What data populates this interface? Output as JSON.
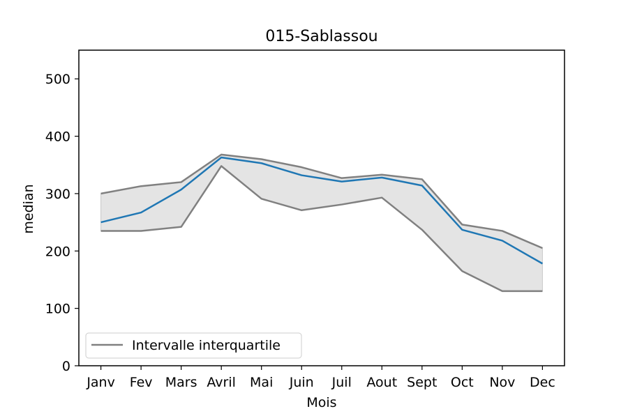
{
  "chart_data": {
    "type": "line",
    "title": "015-Sablassou",
    "xlabel": "Mois",
    "ylabel": "median",
    "categories": [
      "Janv",
      "Fev",
      "Mars",
      "Avril",
      "Mai",
      "Juin",
      "Juil",
      "Aout",
      "Sept",
      "Oct",
      "Nov",
      "Dec"
    ],
    "ylim": [
      0,
      550
    ],
    "yticks": [
      0,
      100,
      200,
      300,
      400,
      500
    ],
    "grid": false,
    "legend_position": "lower-left",
    "series": [
      {
        "key": "median",
        "values": [
          250,
          267,
          307,
          363,
          353,
          332,
          321,
          328,
          314,
          237,
          218,
          178
        ],
        "color": "#1f77b4"
      },
      {
        "key": "q3",
        "name": "Intervalle interquartile",
        "values": [
          300,
          313,
          320,
          368,
          360,
          346,
          327,
          333,
          325,
          246,
          235,
          205
        ],
        "color": "#808080"
      },
      {
        "key": "q1",
        "values": [
          235,
          235,
          242,
          348,
          291,
          271,
          281,
          293,
          237,
          165,
          130,
          130
        ],
        "color": "#808080"
      }
    ],
    "band_fill_color": "#e4e4e4"
  }
}
